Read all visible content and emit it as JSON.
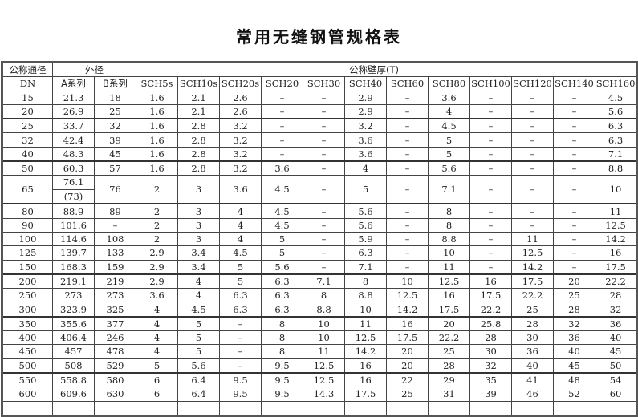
{
  "title": "常用无缝钢管规格表",
  "header": {
    "nominal_diameter": "公称通径",
    "outer_diameter": "外径",
    "wall_thickness": "公称壁厚(T)",
    "dn": "DN",
    "series_a": "A系列",
    "series_b": "B系列",
    "schedules": [
      "SCH5s",
      "SCH10s",
      "SCH20s",
      "SCH20",
      "SCH30",
      "SCH40",
      "SCH60",
      "SCH80",
      "SCH100",
      "SCH120",
      "SCH140",
      "SCH160"
    ]
  },
  "rows": [
    [
      "15",
      "21.3",
      "18",
      "1.6",
      "2.1",
      "2.6",
      "–",
      "–",
      "2.9",
      "–",
      "3.6",
      "–",
      "–",
      "–",
      "4.5"
    ],
    [
      "20",
      "26.9",
      "25",
      "1.6",
      "2.1",
      "2.6",
      "–",
      "–",
      "2.9",
      "–",
      "4",
      "–",
      "–",
      "–",
      "5.6"
    ],
    [
      "25",
      "33.7",
      "32",
      "1.6",
      "2.8",
      "3.2",
      "–",
      "–",
      "3.2",
      "–",
      "4.5",
      "–",
      "–",
      "–",
      "6.3"
    ],
    [
      "32",
      "42.4",
      "39",
      "1.6",
      "2.8",
      "3.2",
      "–",
      "–",
      "3.6",
      "–",
      "5",
      "–",
      "–",
      "–",
      "6.3"
    ],
    [
      "40",
      "48.3",
      "45",
      "1.6",
      "2.8",
      "3.2",
      "–",
      "–",
      "3.6",
      "–",
      "5",
      "–",
      "–",
      "–",
      "7.1"
    ],
    [
      "50",
      "60.3",
      "57",
      "1.6",
      "2.8",
      "3.2",
      "3.6",
      "–",
      "4",
      "–",
      "5.6",
      "–",
      "–",
      "–",
      "8.8"
    ],
    [
      "65",
      "76.1|(73)",
      "76",
      "2",
      "3",
      "3.6",
      "4.5",
      "–",
      "5",
      "–",
      "7.1",
      "–",
      "–",
      "–",
      "10"
    ],
    [
      "80",
      "88.9",
      "89",
      "2",
      "3",
      "4",
      "4.5",
      "–",
      "5.6",
      "–",
      "8",
      "–",
      "–",
      "–",
      "11"
    ],
    [
      "90",
      "101.6",
      "–",
      "2",
      "3",
      "4",
      "4.5",
      "–",
      "5.6",
      "–",
      "8",
      "–",
      "–",
      "–",
      "12.5"
    ],
    [
      "100",
      "114.6",
      "108",
      "2",
      "3",
      "4",
      "5",
      "–",
      "5.9",
      "–",
      "8.8",
      "–",
      "11",
      "–",
      "14.2"
    ],
    [
      "125",
      "139.7",
      "133",
      "2.9",
      "3.4",
      "4.5",
      "5",
      "–",
      "6.3",
      "–",
      "10",
      "–",
      "12.5",
      "–",
      "16"
    ],
    [
      "150",
      "168.3",
      "159",
      "2.9",
      "3.4",
      "5",
      "5.6",
      "–",
      "7.1",
      "–",
      "11",
      "–",
      "14.2",
      "–",
      "17.5"
    ],
    [
      "200",
      "219.1",
      "219",
      "2.9",
      "4",
      "5",
      "6.3",
      "7.1",
      "8",
      "10",
      "12.5",
      "16",
      "17.5",
      "20",
      "22.2"
    ],
    [
      "250",
      "273",
      "273",
      "3.6",
      "4",
      "6.3",
      "6.3",
      "8",
      "8.8",
      "12.5",
      "16",
      "17.5",
      "22.2",
      "25",
      "28"
    ],
    [
      "300",
      "323.9",
      "325",
      "4",
      "4.5",
      "6.3",
      "6.3",
      "8.8",
      "10",
      "14.2",
      "17.5",
      "22.2",
      "25",
      "28",
      "32"
    ],
    [
      "350",
      "355.6",
      "377",
      "4",
      "5",
      "–",
      "8",
      "10",
      "11",
      "16",
      "20",
      "25.8",
      "28",
      "32",
      "36"
    ],
    [
      "400",
      "406.4",
      "246",
      "4",
      "5",
      "–",
      "8",
      "10",
      "12.5",
      "17.5",
      "22.2",
      "28",
      "30",
      "36",
      "40"
    ],
    [
      "450",
      "457",
      "478",
      "4",
      "5",
      "–",
      "8",
      "11",
      "14.2",
      "20",
      "25",
      "30",
      "36",
      "40",
      "45"
    ],
    [
      "500",
      "508",
      "529",
      "5",
      "5.6",
      "–",
      "9.5",
      "12.5",
      "16",
      "20",
      "28",
      "32",
      "40",
      "45",
      "50"
    ],
    [
      "550",
      "558.8",
      "580",
      "6",
      "6.4",
      "9.5",
      "9.5",
      "12.5",
      "16",
      "22",
      "29",
      "35",
      "41",
      "48",
      "54"
    ],
    [
      "600",
      "609.6",
      "630",
      "6",
      "6.4",
      "9.5",
      "9.5",
      "14.3",
      "17.5",
      "25",
      "31",
      "39",
      "46",
      "52",
      "60"
    ],
    [
      "",
      "",
      "",
      "",
      "",
      "",
      "",
      "",
      "",
      "",
      "",
      "",
      "",
      "",
      ""
    ]
  ]
}
